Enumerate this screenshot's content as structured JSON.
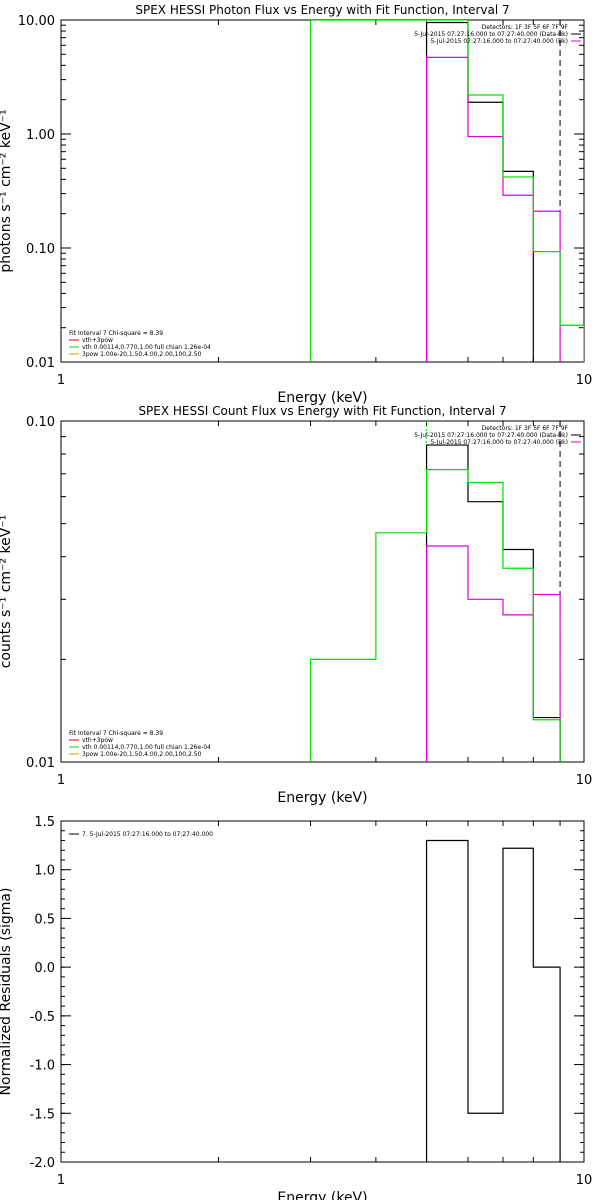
{
  "colors": {
    "black": "#000000",
    "green": "#00e000",
    "magenta": "#e000e0",
    "red": "#e00000",
    "orange": "#e0a000"
  },
  "chart_data": [
    {
      "type": "line",
      "title": "SPEX HESSI Photon Flux vs Energy with Fit Function, Interval 7",
      "xlabel": "Energy (keV)",
      "ylabel": "photons s⁻¹ cm⁻² keV⁻¹",
      "xscale": "log",
      "yscale": "log",
      "xlim": [
        1,
        10
      ],
      "ylim": [
        0.01,
        10
      ],
      "xticks": [
        {
          "v": 1,
          "label": "1"
        },
        {
          "v": 10,
          "label": "10"
        }
      ],
      "yticks": [
        {
          "v": 0.01,
          "label": "0.01"
        },
        {
          "v": 0.1,
          "label": "0.10"
        },
        {
          "v": 1,
          "label": "1.00"
        },
        {
          "v": 10,
          "label": "10.00"
        }
      ],
      "top_legend": [
        {
          "text": "Detectors: 1F 3F 5F 6F 7F 9F",
          "color": ""
        },
        {
          "text": "5-Jul-2015 07:27:16.000 to 07:27:40.000 (Data-Bk)",
          "color": "#000000"
        },
        {
          "text": "5-Jul-2015 07:27:16.000 to 07:27:40.000 (Bk)",
          "color": "#e000e0"
        }
      ],
      "fit_legend": [
        {
          "text": "Fit Interval 7   Chi-square = 8.39",
          "color": ""
        },
        {
          "text": "vth+3pow",
          "color": "#e00000"
        },
        {
          "text": "vth 0.00114,0.770,1.00   full chian 1.26e-04",
          "color": "#00e000"
        },
        {
          "text": "3pow 1.00e-20,1.50,4.00,2.00,100,2.50",
          "color": "#e0a000"
        }
      ],
      "series": [
        {
          "name": "5-Jul-2015 07:27:16.000 to 07:27:40.000 (Data-Bk)",
          "color": "#000000",
          "edges": [
            5.0,
            6.0,
            7.0,
            8.0
          ],
          "values": [
            9.5,
            1.9,
            0.47
          ]
        },
        {
          "name": "5-Jul-2015 07:27:16.000 to 07:27:40.000 (Bk)",
          "color": "#e000e0",
          "edges": [
            5.0,
            6.0,
            7.0,
            8.0,
            9.0
          ],
          "values": [
            4.7,
            0.95,
            0.29,
            0.21
          ]
        },
        {
          "name": "vth 0.00114,0.770,1.00   full chian 1.26e-04",
          "color": "#00e000",
          "edges": [
            3.0,
            5.0,
            6.0,
            7.0,
            8.0,
            9.0,
            10.0
          ],
          "values": [
            10,
            10,
            2.2,
            0.42,
            0.093,
            0.021
          ]
        }
      ],
      "vlines": [
        {
          "x": 5.0,
          "color": "#e000e0",
          "dash": "2,2"
        },
        {
          "x": 9.0,
          "color": "#000000",
          "dash": "6,4"
        }
      ]
    },
    {
      "type": "line",
      "title": "SPEX HESSI Count Flux vs Energy with Fit Function, Interval 7",
      "xlabel": "Energy (keV)",
      "ylabel": "counts s⁻¹ cm⁻² keV⁻¹",
      "xscale": "log",
      "yscale": "log",
      "xlim": [
        1,
        10
      ],
      "ylim": [
        0.01,
        0.1
      ],
      "xticks": [
        {
          "v": 1,
          "label": "1"
        },
        {
          "v": 10,
          "label": "10"
        }
      ],
      "yticks": [
        {
          "v": 0.01,
          "label": "0.01"
        },
        {
          "v": 0.1,
          "label": "0.10"
        }
      ],
      "top_legend": [
        {
          "text": "Detectors: 1F 3F 5F 6F 7F 9F",
          "color": ""
        },
        {
          "text": "5-Jul-2015 07:27:16.000 to 07:27:40.000 (Data-Bk)",
          "color": "#000000"
        },
        {
          "text": "5-Jul-2015 07:27:16.000 to 07:27:40.000 (Bk)",
          "color": "#e000e0"
        }
      ],
      "fit_legend": [
        {
          "text": "Fit Interval 7   Chi-square = 8.39",
          "color": ""
        },
        {
          "text": "vth+3pow",
          "color": "#e00000"
        },
        {
          "text": "vth 0.00114,0.770,1.00   full chian 1.26e-04",
          "color": "#00e000"
        },
        {
          "text": "3pow 1.00e-20,1.50,4.00,2.00,100,2.50",
          "color": "#e0a000"
        }
      ],
      "series": [
        {
          "name": "5-Jul-2015 07:27:16.000 to 07:27:40.000 (Data-Bk)",
          "color": "#000000",
          "edges": [
            5.0,
            6.0,
            7.0,
            8.0,
            9.0
          ],
          "values": [
            0.085,
            0.058,
            0.042,
            0.0135
          ]
        },
        {
          "name": "5-Jul-2015 07:27:16.000 to 07:27:40.000 (Bk)",
          "color": "#e000e0",
          "edges": [
            5.0,
            6.0,
            7.0,
            8.0,
            9.0
          ],
          "values": [
            0.043,
            0.03,
            0.027,
            0.031
          ]
        },
        {
          "name": "vth 0.00114,0.770,1.00   full chian 1.26e-04",
          "color": "#00e000",
          "edges": [
            3.0,
            3.5,
            4.0,
            5.0,
            6.0,
            7.0,
            8.0,
            9.0
          ],
          "values": [
            0.02,
            0.02,
            0.047,
            0.072,
            0.066,
            0.037,
            0.0133
          ]
        }
      ],
      "vlines": [
        {
          "x": 5.0,
          "color": "#00e000",
          "dash": "2,2"
        },
        {
          "x": 9.0,
          "color": "#000000",
          "dash": "6,4"
        }
      ]
    },
    {
      "type": "line",
      "title": "",
      "xlabel": "Energy (keV)",
      "ylabel": "Normalized Residuals (sigma)",
      "xscale": "log",
      "yscale": "linear",
      "xlim": [
        1,
        10
      ],
      "ylim": [
        -2.0,
        1.5
      ],
      "xticks": [
        {
          "v": 1,
          "label": "1"
        },
        {
          "v": 10,
          "label": "10"
        }
      ],
      "yticks": [
        {
          "v": 1.5,
          "label": "1.5"
        },
        {
          "v": 1.0,
          "label": "1.0"
        },
        {
          "v": 0.5,
          "label": "0.5"
        },
        {
          "v": 0.0,
          "label": "0.0"
        },
        {
          "v": -0.5,
          "label": "-0.5"
        },
        {
          "v": -1.0,
          "label": "-1.0"
        },
        {
          "v": -1.5,
          "label": "-1.5"
        },
        {
          "v": -2.0,
          "label": "-2.0"
        }
      ],
      "top_legend": [],
      "fit_legend": [
        {
          "text": "7.  5-Jul-2015 07:27:16.000 to 07:27:40.000",
          "color": "#000000"
        }
      ],
      "series": [
        {
          "name": "7.  5-Jul-2015 07:27:16.000 to 07:27:40.000",
          "color": "#000000",
          "edges": [
            5.0,
            6.0,
            7.0,
            8.0,
            9.0
          ],
          "values": [
            1.3,
            -1.5,
            1.22,
            0.0
          ],
          "from_floor": true
        }
      ],
      "vlines": []
    }
  ]
}
